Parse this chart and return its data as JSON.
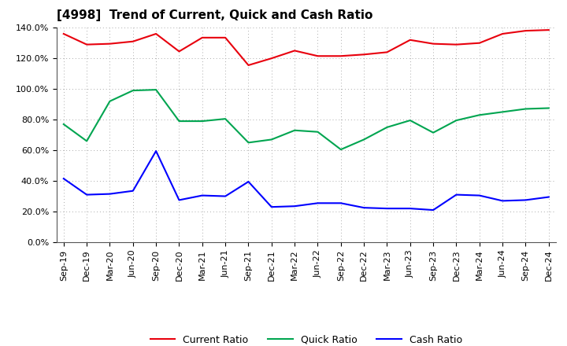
{
  "title": "[4998]  Trend of Current, Quick and Cash Ratio",
  "x_labels": [
    "Sep-19",
    "Dec-19",
    "Mar-20",
    "Jun-20",
    "Sep-20",
    "Dec-20",
    "Mar-21",
    "Jun-21",
    "Sep-21",
    "Dec-21",
    "Mar-22",
    "Jun-22",
    "Sep-22",
    "Dec-22",
    "Mar-23",
    "Jun-23",
    "Sep-23",
    "Dec-23",
    "Mar-24",
    "Jun-24",
    "Sep-24",
    "Dec-24"
  ],
  "current_ratio": [
    136.0,
    129.0,
    129.5,
    131.0,
    136.0,
    124.5,
    133.5,
    133.5,
    115.5,
    120.0,
    125.0,
    121.5,
    121.5,
    122.5,
    124.0,
    132.0,
    129.5,
    129.0,
    130.0,
    136.0,
    138.0,
    138.5
  ],
  "quick_ratio": [
    77.0,
    66.0,
    92.0,
    99.0,
    99.5,
    79.0,
    79.0,
    80.5,
    65.0,
    67.0,
    73.0,
    72.0,
    60.5,
    67.0,
    75.0,
    79.5,
    71.5,
    79.5,
    83.0,
    85.0,
    87.0,
    87.5
  ],
  "cash_ratio": [
    41.5,
    31.0,
    31.5,
    33.5,
    59.5,
    27.5,
    30.5,
    30.0,
    39.5,
    23.0,
    23.5,
    25.5,
    25.5,
    22.5,
    22.0,
    22.0,
    21.0,
    31.0,
    30.5,
    27.0,
    27.5,
    29.5
  ],
  "current_color": "#e8000d",
  "quick_color": "#00a550",
  "cash_color": "#0000ff",
  "ylim": [
    0,
    140
  ],
  "yticks": [
    0,
    20,
    40,
    60,
    80,
    100,
    120,
    140
  ],
  "background_color": "#ffffff",
  "plot_bg_color": "#ffffff",
  "title_fontsize": 11,
  "tick_fontsize": 8,
  "legend_fontsize": 9,
  "linewidth": 1.5
}
